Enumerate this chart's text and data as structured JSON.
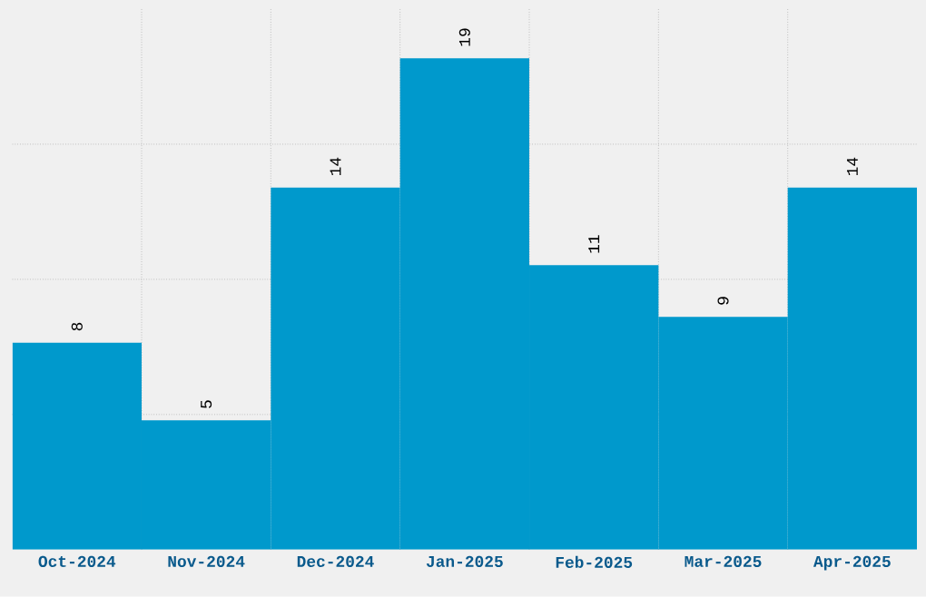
{
  "chart_data": {
    "type": "bar",
    "categories": [
      "Oct-2024",
      "Nov-2024",
      "Dec-2024",
      "Jan-2025",
      "Feb-2025",
      "Mar-2025",
      "Apr-2025"
    ],
    "values": [
      8,
      5,
      14,
      19,
      11,
      9,
      14
    ],
    "color": "#0099cc",
    "data_labels": true,
    "grid": true,
    "tick_labels": "x",
    "ylim": [
      0,
      20.9
    ],
    "yticks": [
      {
        "value": 5.225,
        "label": null
      },
      {
        "value": 10.45,
        "label": null
      },
      {
        "value": 15.675,
        "label": null
      }
    ]
  }
}
